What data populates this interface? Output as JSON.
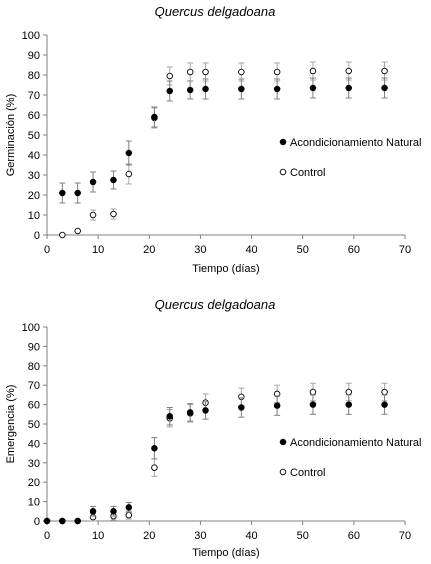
{
  "chart_data": [
    {
      "type": "scatter",
      "title": "Quercus delgadoana",
      "xlabel": "Tiempo (días)",
      "ylabel": "Germinación (%)",
      "xlim": [
        0,
        70
      ],
      "ylim": [
        0,
        100
      ],
      "xticks": [
        0,
        10,
        20,
        30,
        40,
        50,
        60,
        70
      ],
      "yticks": [
        0,
        10,
        20,
        30,
        40,
        50,
        60,
        70,
        80,
        90,
        100
      ],
      "grid": false,
      "legend_position": "right",
      "series": [
        {
          "name": "Acondicionamiento Natural",
          "marker": "filled-circle",
          "x": [
            3,
            6,
            9,
            13,
            16,
            21,
            24,
            28,
            31,
            38,
            45,
            52,
            59,
            66
          ],
          "y": [
            21,
            21,
            26.5,
            27.5,
            41,
            59,
            72,
            72.5,
            73,
            73,
            73,
            73.5,
            73.5,
            73.5
          ],
          "err": [
            5,
            5,
            5,
            4.5,
            6,
            5,
            5,
            4.5,
            5,
            5,
            5,
            5,
            5,
            5
          ]
        },
        {
          "name": "Control",
          "marker": "open-circle",
          "x": [
            3,
            6,
            9,
            13,
            16,
            21,
            24,
            28,
            31,
            38,
            45,
            52,
            59,
            66
          ],
          "y": [
            0,
            2,
            10,
            10.5,
            30.5,
            58.5,
            79.5,
            81.5,
            81.5,
            81.5,
            81.5,
            82,
            82,
            82
          ],
          "err": [
            0,
            0,
            2.5,
            2.5,
            5,
            5,
            4.5,
            4.5,
            4.5,
            4.5,
            4.5,
            4.5,
            4.5,
            4.5
          ]
        }
      ]
    },
    {
      "type": "scatter",
      "title": "Quercus delgadoana",
      "xlabel": "Tiempo (días)",
      "ylabel": "Emergencia (%)",
      "xlim": [
        0,
        70
      ],
      "ylim": [
        0,
        100
      ],
      "xticks": [
        0,
        10,
        20,
        30,
        40,
        50,
        60,
        70
      ],
      "yticks": [
        0,
        10,
        20,
        30,
        40,
        50,
        60,
        70,
        80,
        90,
        100
      ],
      "grid": false,
      "legend_position": "right",
      "series": [
        {
          "name": "Acondicionamiento Natural",
          "marker": "filled-circle",
          "x": [
            0,
            3,
            6,
            9,
            13,
            16,
            21,
            24,
            28,
            31,
            38,
            45,
            52,
            59,
            66
          ],
          "y": [
            0,
            0,
            0,
            5,
            5,
            7,
            37.5,
            54,
            56,
            57,
            58.5,
            59.5,
            60,
            60,
            60
          ],
          "err": [
            0,
            0,
            0,
            2.5,
            2.5,
            2.5,
            5.5,
            4.5,
            4.5,
            4.5,
            5,
            5,
            5,
            5,
            5
          ]
        },
        {
          "name": "Control",
          "marker": "open-circle",
          "x": [
            0,
            3,
            6,
            9,
            13,
            16,
            21,
            24,
            28,
            31,
            38,
            45,
            52,
            59,
            66
          ],
          "y": [
            0,
            0,
            0,
            2,
            2.5,
            3,
            27.5,
            53,
            55.5,
            61,
            64,
            65.5,
            66.5,
            66.5,
            66.5
          ],
          "err": [
            0,
            0,
            0,
            2,
            2,
            2,
            4.5,
            4.5,
            4.5,
            4.5,
            4.5,
            4.5,
            4.5,
            4.5,
            4.5
          ]
        }
      ]
    }
  ]
}
